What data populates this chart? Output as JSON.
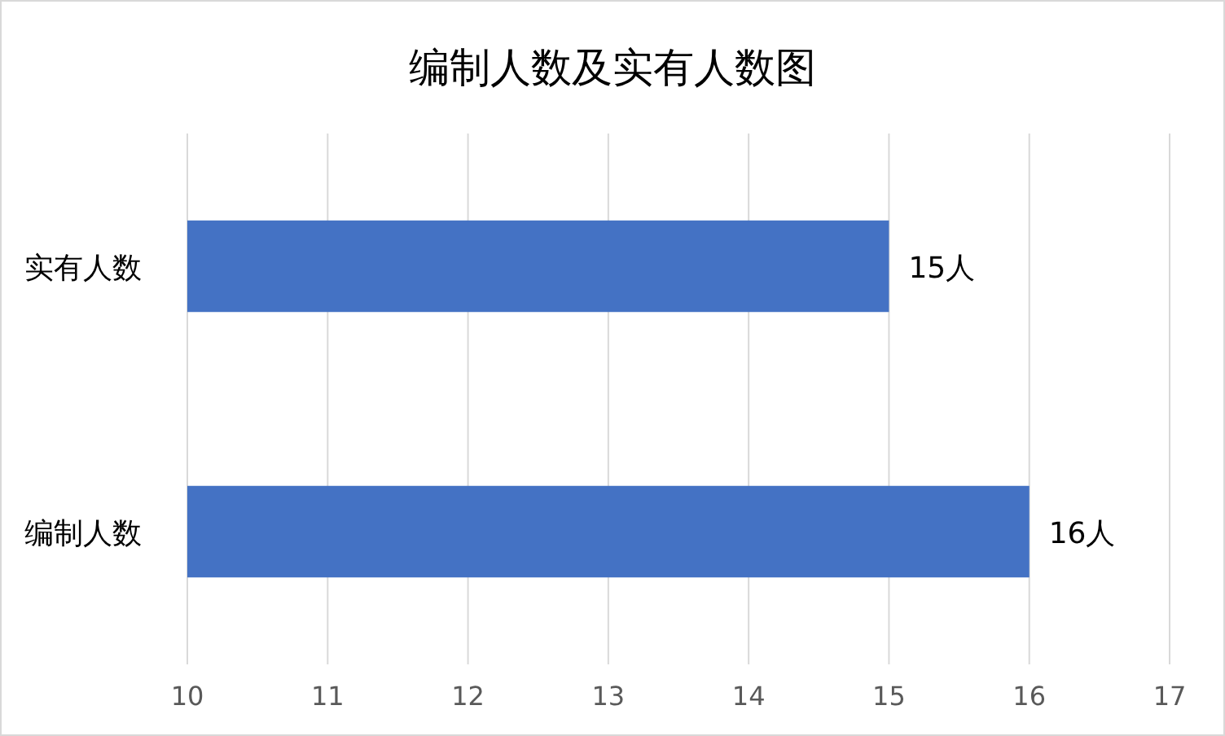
{
  "chart_data": {
    "type": "bar",
    "orientation": "horizontal",
    "title": "编制人数及实有人数图",
    "categories": [
      "实有人数",
      "编制人数"
    ],
    "series": [
      {
        "color": "#4472c4",
        "values": [
          15,
          16
        ],
        "value_labels": [
          "15人",
          "16人"
        ]
      }
    ],
    "xlim": [
      10,
      17
    ],
    "xticks": [
      10,
      11,
      12,
      13,
      14,
      15,
      16,
      17
    ],
    "grid": "x"
  }
}
